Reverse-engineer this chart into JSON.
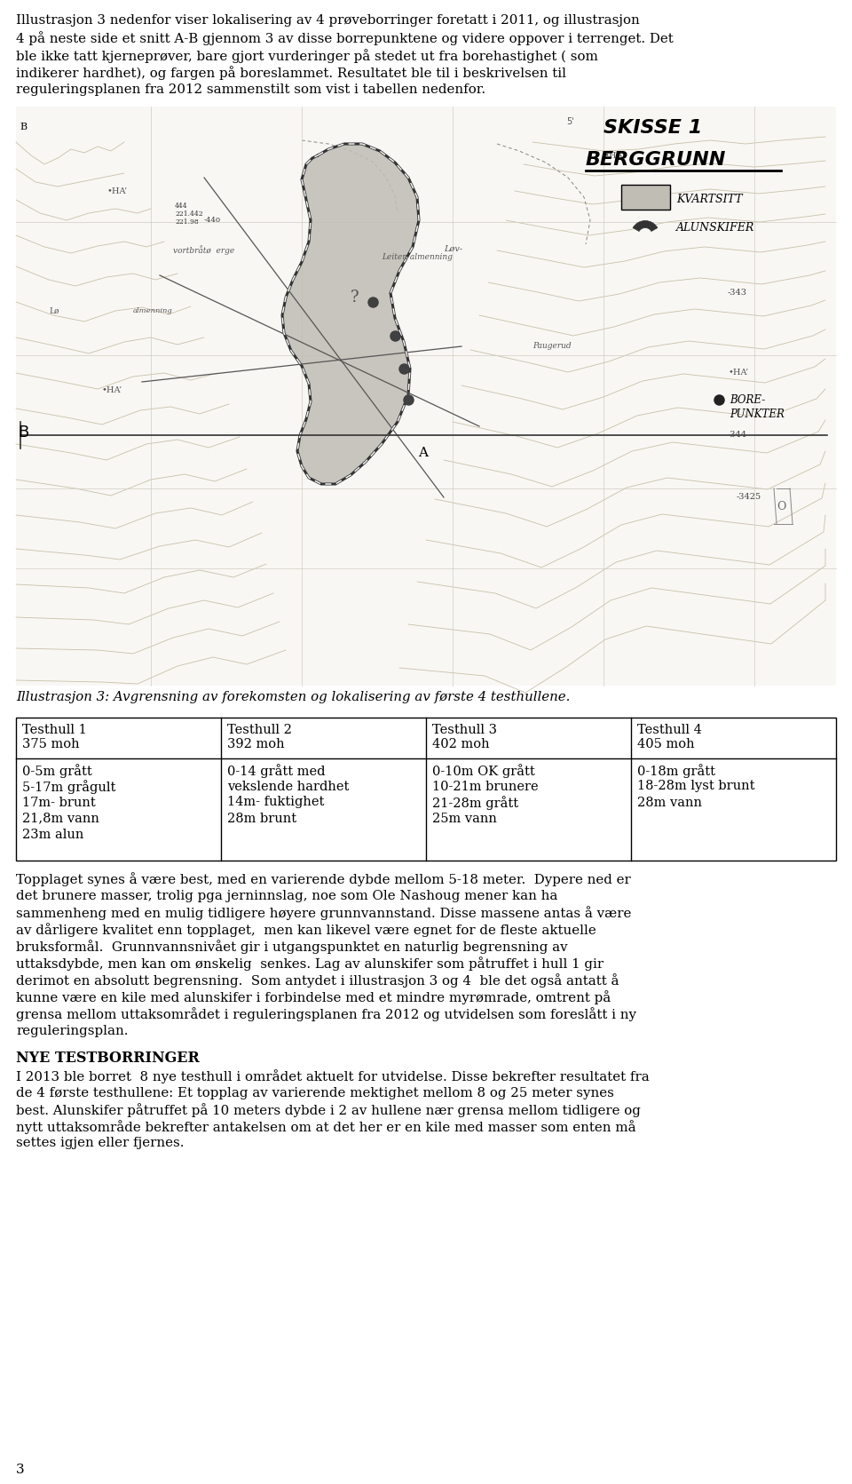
{
  "background_color": "#ffffff",
  "page_width": 9.6,
  "page_height": 16.71,
  "intro_text": "Illustrasjon 3 nedenfor viser lokalisering av 4 prøveborringer foretatt i 2011, og illustrasjon 4 på neste side et snitt A-B gjennom 3 av disse borrepunktene og videre oppover i terrenget. Det ble ikke tatt kjerneprøver, bare gjort vurderinger på stedet ut fra borehastighet ( som indikerer hardhet), og fargen på boreslammet. Resultatet ble til i beskrivelsen til reguleringsplanen fra 2012 sammenstilt som vist i tabellen nedenfor.",
  "caption_text": "Illustrasjon 3: Avgrensning av forekomsten og lokalisering av første 4 testhullene.",
  "table_headers": [
    "Testhull 1\n375 moh",
    "Testhull 2\n392 moh",
    "Testhull 3\n402 moh",
    "Testhull 4\n405 moh"
  ],
  "table_row1": [
    "0-5m grått",
    "0-14 grått med",
    "0-10m OK grått",
    "0-18m grått"
  ],
  "table_row2": [
    "5-17m grågult",
    "vekslende hardhet",
    "10-21m brunere",
    "18-28m lyst brunt"
  ],
  "table_row3": [
    "17m- brunt",
    "14m- fuktighet",
    "21-28m grått",
    "28m vann"
  ],
  "table_row4": [
    "21,8m vann",
    "28m brunt",
    "25m vann",
    ""
  ],
  "table_row5": [
    "23m alun",
    "",
    "",
    ""
  ],
  "body_text_lines": [
    "Topplaget synes å være best, med en varierende dybde mellom 5-18 meter.  Dypere ned er",
    "det brunere masser, trolig pga jerninnslag, noe som Ole Nashoug mener kan ha",
    "sammenheng med en mulig tidligere høyere grunnvannstand. Disse massene antas å være",
    "av dårligere kvalitet enn topplaget,  men kan likevel være egnet for de fleste aktuelle",
    "bruksformål.  Grunnvannsnivået gir i utgangspunktet en naturlig begrensning av",
    "uttaksdybde, men kan om ønskelig  senkes. Lag av alunskifer som påtruffet i hull 1 gir",
    "derimot en absolutt begrensning.  Som antydet i illustrasjon 3 og 4  ble det også antatt å",
    "kunne være en kile med alunskifer i forbindelse med et mindre myrømrade, omtrent på",
    "grensa mellom uttaksområdet i reguleringsplanen fra 2012 og utvidelsen som foreslått i ny",
    "reguleringsplan."
  ],
  "nye_heading": "NYE TESTBORRINGER",
  "nye_text_lines": [
    "I 2013 ble borret  8 nye testhull i området aktuelt for utvidelse. Disse bekrefter resultatet fra",
    "de 4 første testhullene: Et topplag av varierende mektighet mellom 8 og 25 meter synes",
    "best. Alunskifer påtruffet på 10 meters dybde i 2 av hullene nær grensa mellom tidligere og",
    "nytt uttaksområde bekrefter antakelsen om at det her er en kile med masser som enten må",
    "settes igjen eller fjernes."
  ],
  "page_number": "3"
}
